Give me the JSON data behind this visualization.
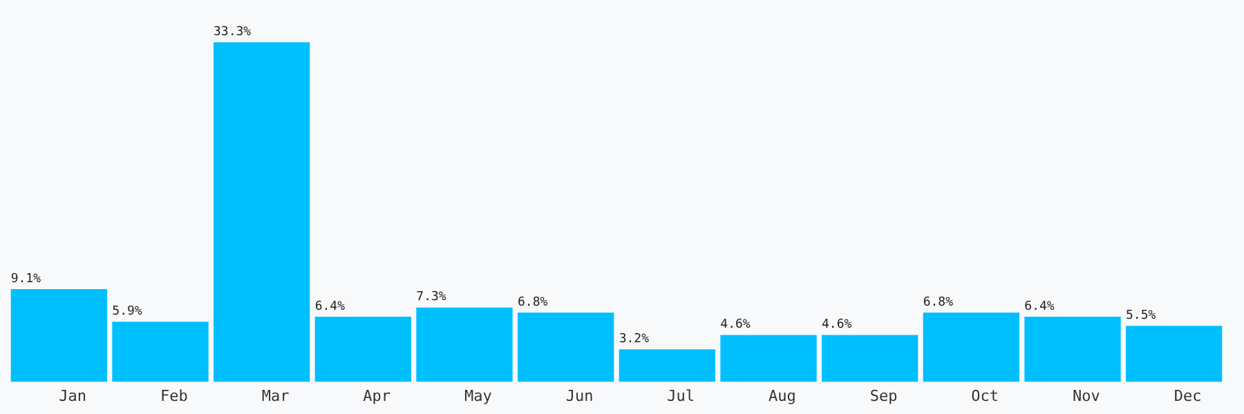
{
  "chart_data": {
    "type": "bar",
    "categories": [
      "Jan",
      "Feb",
      "Mar",
      "Apr",
      "May",
      "Jun",
      "Jul",
      "Aug",
      "Sep",
      "Oct",
      "Nov",
      "Dec"
    ],
    "values": [
      9.1,
      5.9,
      33.3,
      6.4,
      7.3,
      6.8,
      3.2,
      4.6,
      4.6,
      6.8,
      6.4,
      5.5
    ],
    "value_labels": [
      "9.1%",
      "5.9%",
      "33.3%",
      "6.4%",
      "7.3%",
      "6.8%",
      "3.2%",
      "4.6%",
      "4.6%",
      "6.8%",
      "6.4%",
      "5.5%"
    ],
    "color": "#00bfff",
    "grid": false,
    "legend": false
  }
}
